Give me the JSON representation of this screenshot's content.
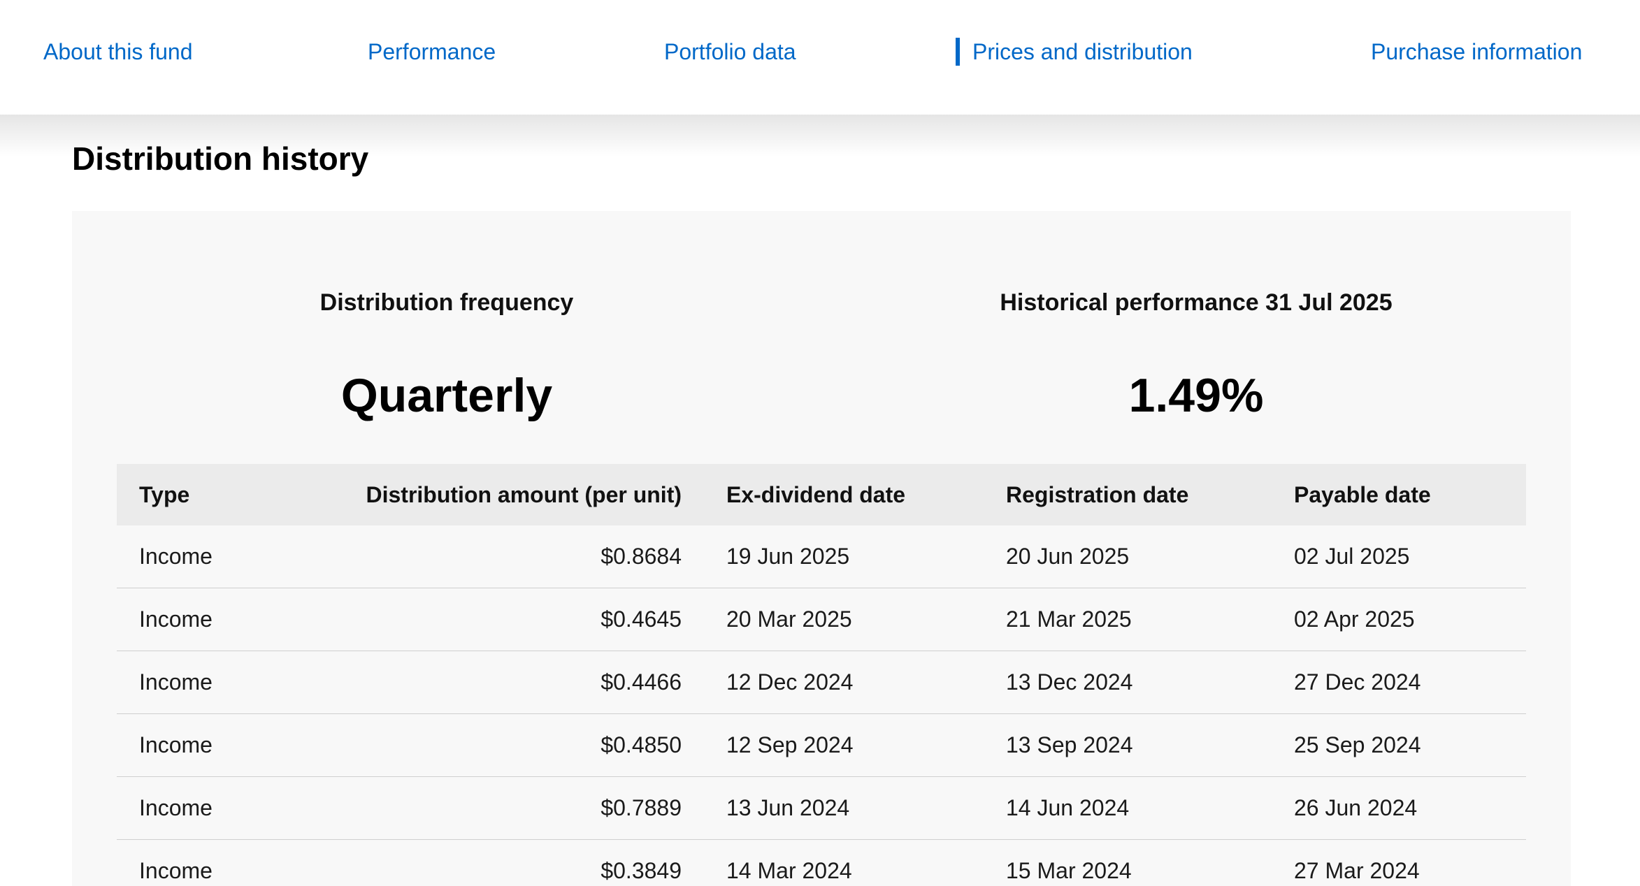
{
  "nav": {
    "items": [
      {
        "label": "About this fund",
        "active": false
      },
      {
        "label": "Performance",
        "active": false
      },
      {
        "label": "Portfolio data",
        "active": false
      },
      {
        "label": "Prices and distribution",
        "active": true
      },
      {
        "label": "Purchase information",
        "active": false
      }
    ],
    "accent_color": "#0068c8"
  },
  "section": {
    "title": "Distribution history"
  },
  "summary": {
    "frequency_label": "Distribution frequency",
    "frequency_value": "Quarterly",
    "performance_label": "Historical performance 31 Jul 2025",
    "performance_value": "1.49%"
  },
  "table": {
    "headers": {
      "type": "Type",
      "amount": "Distribution amount (per unit)",
      "ex_dividend": "Ex-dividend date",
      "registration": "Registration date",
      "payable": "Payable date"
    },
    "rows": [
      {
        "type": "Income",
        "amount": "$0.8684",
        "ex_dividend": "19 Jun 2025",
        "registration": "20 Jun 2025",
        "payable": "02 Jul 2025"
      },
      {
        "type": "Income",
        "amount": "$0.4645",
        "ex_dividend": "20 Mar 2025",
        "registration": "21 Mar 2025",
        "payable": "02 Apr 2025"
      },
      {
        "type": "Income",
        "amount": "$0.4466",
        "ex_dividend": "12 Dec 2024",
        "registration": "13 Dec 2024",
        "payable": "27 Dec 2024"
      },
      {
        "type": "Income",
        "amount": "$0.4850",
        "ex_dividend": "12 Sep 2024",
        "registration": "13 Sep 2024",
        "payable": "25 Sep 2024"
      },
      {
        "type": "Income",
        "amount": "$0.7889",
        "ex_dividend": "13 Jun 2024",
        "registration": "14 Jun 2024",
        "payable": "26 Jun 2024"
      },
      {
        "type": "Income",
        "amount": "$0.3849",
        "ex_dividend": "14 Mar 2024",
        "registration": "15 Mar 2024",
        "payable": "27 Mar 2024"
      }
    ]
  }
}
